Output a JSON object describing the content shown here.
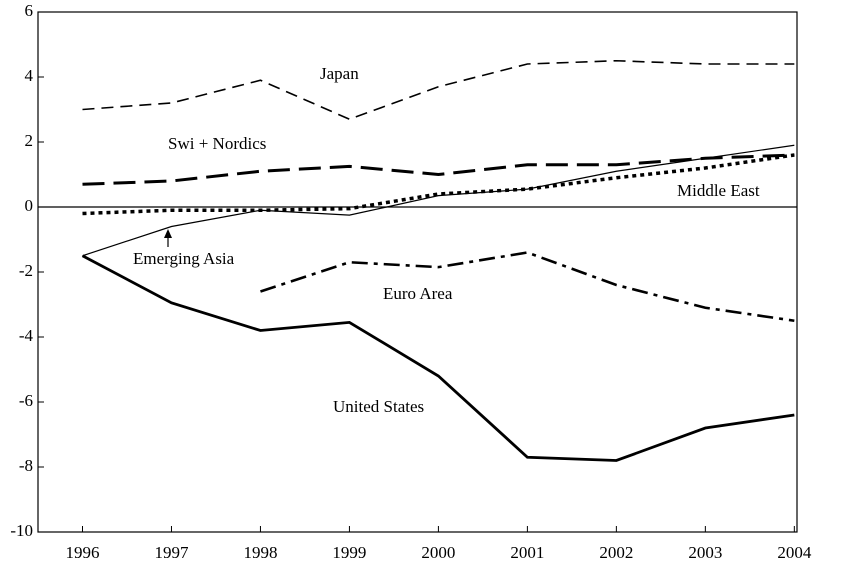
{
  "chart_data": {
    "type": "line",
    "x": [
      1996,
      1997,
      1998,
      1999,
      2000,
      2001,
      2002,
      2003,
      2004
    ],
    "xlim": [
      1995.5,
      2004.03
    ],
    "xticks": [
      1996,
      1997,
      1998,
      1999,
      2000,
      2001,
      2002,
      2003,
      2004
    ],
    "ylim": [
      -10,
      6
    ],
    "yticks": [
      -10,
      -8,
      -6,
      -4,
      -2,
      0,
      2,
      4,
      6
    ],
    "series": [
      {
        "name": "Japan",
        "color": "#000000",
        "style": "dashed",
        "values": [
          3.0,
          3.2,
          3.9,
          2.7,
          3.7,
          4.4,
          4.5,
          4.4,
          4.4
        ]
      },
      {
        "name": "Swi + Nordics",
        "color": "#000000",
        "style": "long-dashed",
        "values": [
          0.7,
          0.8,
          1.1,
          1.25,
          1.0,
          1.3,
          1.3,
          1.5,
          1.6
        ]
      },
      {
        "name": "Middle East",
        "color": "#000000",
        "style": "dotted",
        "values": [
          -0.2,
          -0.1,
          -0.1,
          -0.05,
          0.4,
          0.55,
          0.9,
          1.2,
          1.6
        ]
      },
      {
        "name": "Emerging Asia",
        "color": "#000000",
        "style": "thin",
        "values": [
          -1.5,
          -0.6,
          -0.1,
          -0.25,
          0.35,
          0.55,
          1.1,
          1.5,
          1.9
        ]
      },
      {
        "name": "Euro Area",
        "color": "#000000",
        "style": "dash-dot",
        "values": [
          null,
          null,
          -2.6,
          -1.7,
          -1.85,
          -1.4,
          -2.4,
          -3.1,
          -3.5
        ]
      },
      {
        "name": "United States",
        "color": "#000000",
        "style": "thick",
        "values": [
          -1.5,
          -2.95,
          -3.8,
          -3.55,
          -5.2,
          -7.7,
          -7.8,
          -6.8,
          -6.4
        ]
      }
    ]
  }
}
